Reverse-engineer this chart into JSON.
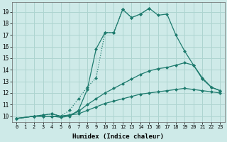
{
  "xlabel": "Humidex (Indice chaleur)",
  "bg_color": "#ceeae8",
  "grid_color": "#add4d0",
  "line_color": "#1e7b6e",
  "xlim": [
    -0.5,
    23.5
  ],
  "ylim": [
    9.5,
    19.8
  ],
  "xticks": [
    0,
    1,
    2,
    3,
    4,
    5,
    6,
    7,
    8,
    9,
    10,
    11,
    12,
    13,
    14,
    15,
    16,
    17,
    18,
    19,
    20,
    21,
    22,
    23
  ],
  "yticks": [
    10,
    11,
    12,
    13,
    14,
    15,
    16,
    17,
    18,
    19
  ],
  "lines": [
    {
      "x": [
        0,
        2,
        3,
        4,
        5,
        6,
        7,
        8,
        9,
        10,
        11,
        12,
        13,
        14,
        15,
        16,
        17,
        18,
        19,
        20,
        21,
        22,
        23
      ],
      "y": [
        9.8,
        10.0,
        10.0,
        10.0,
        9.9,
        10.0,
        10.5,
        12.3,
        15.8,
        17.2,
        17.2,
        19.2,
        18.5,
        18.8,
        19.3,
        18.7,
        18.8,
        17.0,
        15.6,
        14.4,
        13.2,
        12.5,
        12.2
      ],
      "style": "-",
      "marker": "D",
      "ms": 2.5
    },
    {
      "x": [
        0,
        2,
        3,
        4,
        5,
        6,
        7,
        8,
        9,
        10,
        11,
        12,
        13,
        14,
        15
      ],
      "y": [
        9.8,
        10.0,
        10.1,
        10.2,
        10.0,
        10.5,
        11.5,
        12.5,
        13.3,
        17.2,
        17.2,
        19.2,
        18.5,
        18.8,
        19.3
      ],
      "style": ":",
      "marker": "D",
      "ms": 2.5
    },
    {
      "x": [
        0,
        2,
        3,
        4,
        5,
        6,
        7,
        8,
        9,
        10,
        11,
        12,
        13,
        14,
        15,
        16,
        17,
        18,
        19,
        20,
        21,
        22,
        23
      ],
      "y": [
        9.8,
        10.0,
        10.1,
        10.2,
        10.0,
        10.1,
        10.4,
        11.0,
        11.5,
        12.0,
        12.4,
        12.8,
        13.2,
        13.6,
        13.9,
        14.1,
        14.2,
        14.4,
        14.6,
        14.4,
        13.3,
        12.5,
        12.2
      ],
      "style": "-",
      "marker": "D",
      "ms": 2.5
    },
    {
      "x": [
        0,
        2,
        3,
        4,
        5,
        6,
        7,
        8,
        9,
        10,
        11,
        12,
        13,
        14,
        15,
        16,
        17,
        18,
        19,
        20,
        21,
        22,
        23
      ],
      "y": [
        9.8,
        10.0,
        10.0,
        10.0,
        10.0,
        10.1,
        10.2,
        10.5,
        10.8,
        11.1,
        11.3,
        11.5,
        11.7,
        11.9,
        12.0,
        12.1,
        12.2,
        12.3,
        12.4,
        12.3,
        12.2,
        12.1,
        12.0
      ],
      "style": "-",
      "marker": "D",
      "ms": 2.5
    }
  ]
}
